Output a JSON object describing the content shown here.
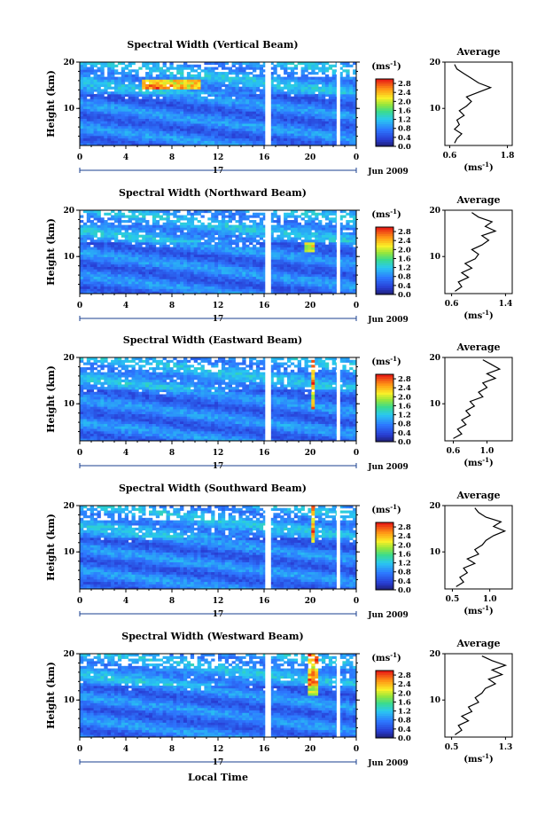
{
  "figure": {
    "xlabel": "Local Time",
    "date_label": "Jun 2009",
    "day_label": "17",
    "colorbar_unit": "(ms",
    "colorbar_unit_exp": "-1",
    "colorbar_unit_close": ")",
    "average_xlabel": "(ms",
    "height_label": "Height (km)",
    "average_title": "Average"
  },
  "chart_data": [
    {
      "type": "heatmap",
      "title": "Spectral Width (Vertical Beam)",
      "ylabel": "Height (km)",
      "x_ticks": [
        "0",
        "4",
        "8",
        "12",
        "16",
        "20",
        "0"
      ],
      "y_ticks": [
        "20",
        "10"
      ],
      "xlim": [
        0,
        24
      ],
      "ylim": [
        2,
        20
      ],
      "colorbar": {
        "ticks": [
          "2.8",
          "2.4",
          "2.0",
          "1.6",
          "1.2",
          "0.8",
          "0.4",
          "0.0"
        ],
        "range": [
          0,
          3.0
        ]
      },
      "data_gaps_hours": [
        [
          16.1,
          16.6
        ],
        [
          22.3,
          22.6
        ]
      ],
      "high_region": {
        "time": [
          5.5,
          10.5
        ],
        "height": [
          14,
          16.5
        ]
      },
      "profile": {
        "title": "Average",
        "x_ticks": [
          "0.6",
          "1.8"
        ],
        "xlim": [
          0.5,
          1.9
        ],
        "y_ticks": [
          "20",
          "10"
        ],
        "ylim": [
          2,
          20
        ],
        "values": [
          [
            0.7,
            2.5
          ],
          [
            0.75,
            3.5
          ],
          [
            0.85,
            4.5
          ],
          [
            0.7,
            5.5
          ],
          [
            0.8,
            6.5
          ],
          [
            0.75,
            7.5
          ],
          [
            0.9,
            8.5
          ],
          [
            0.8,
            9.5
          ],
          [
            0.95,
            10.5
          ],
          [
            1.05,
            11.5
          ],
          [
            0.95,
            12.5
          ],
          [
            1.2,
            13.5
          ],
          [
            1.45,
            14.5
          ],
          [
            1.2,
            15.5
          ],
          [
            1.05,
            16.5
          ],
          [
            0.9,
            17.5
          ],
          [
            0.75,
            18.5
          ],
          [
            0.7,
            19.5
          ]
        ]
      }
    },
    {
      "type": "heatmap",
      "title": "Spectral Width (Northward Beam)",
      "ylabel": "Height (km)",
      "x_ticks": [
        "0",
        "4",
        "8",
        "12",
        "16",
        "20",
        "0"
      ],
      "y_ticks": [
        "20",
        "10"
      ],
      "xlim": [
        0,
        24
      ],
      "ylim": [
        2,
        20
      ],
      "colorbar": {
        "ticks": [
          "2.8",
          "2.4",
          "2.0",
          "1.6",
          "1.2",
          "0.8",
          "0.4",
          "0.0"
        ],
        "range": [
          0,
          3.0
        ]
      },
      "data_gaps_hours": [
        [
          16.1,
          16.6
        ],
        [
          22.3,
          22.6
        ]
      ],
      "high_region": {
        "time": [
          19.5,
          20.5
        ],
        "height": [
          11,
          13
        ]
      },
      "profile": {
        "title": "Average",
        "x_ticks": [
          "0.6",
          "1.4"
        ],
        "xlim": [
          0.5,
          1.5
        ],
        "y_ticks": [
          "20",
          "10"
        ],
        "ylim": [
          2,
          20
        ],
        "values": [
          [
            0.65,
            2.5
          ],
          [
            0.75,
            3.5
          ],
          [
            0.7,
            4.5
          ],
          [
            0.85,
            5.5
          ],
          [
            0.75,
            6.5
          ],
          [
            0.9,
            7.5
          ],
          [
            0.8,
            8.5
          ],
          [
            0.95,
            9.5
          ],
          [
            1.0,
            10.5
          ],
          [
            0.9,
            11.5
          ],
          [
            1.05,
            12.5
          ],
          [
            1.15,
            13.5
          ],
          [
            1.05,
            14.5
          ],
          [
            1.25,
            15.5
          ],
          [
            1.1,
            16.5
          ],
          [
            1.2,
            17.5
          ],
          [
            1.0,
            18.5
          ],
          [
            0.9,
            19.5
          ]
        ]
      }
    },
    {
      "type": "heatmap",
      "title": "Spectral Width (Eastward Beam)",
      "ylabel": "Height (km)",
      "x_ticks": [
        "0",
        "4",
        "8",
        "12",
        "16",
        "20",
        "0"
      ],
      "y_ticks": [
        "20",
        "10"
      ],
      "xlim": [
        0,
        24
      ],
      "ylim": [
        2,
        20
      ],
      "colorbar": {
        "ticks": [
          "2.8",
          "2.4",
          "2.0",
          "1.6",
          "1.2",
          "0.8",
          "0.4",
          "0.0"
        ],
        "range": [
          0,
          3.0
        ]
      },
      "data_gaps_hours": [
        [
          16.1,
          16.6
        ],
        [
          22.3,
          22.6
        ]
      ],
      "high_region": {
        "time": [
          20.0,
          20.4
        ],
        "height": [
          9,
          20
        ]
      },
      "profile": {
        "title": "Average",
        "x_ticks": [
          "0.6",
          "1.0"
        ],
        "xlim": [
          0.5,
          1.3
        ],
        "y_ticks": [
          "20",
          "10"
        ],
        "ylim": [
          2,
          20
        ],
        "values": [
          [
            0.6,
            2.5
          ],
          [
            0.7,
            3.5
          ],
          [
            0.65,
            4.5
          ],
          [
            0.75,
            5.5
          ],
          [
            0.7,
            6.5
          ],
          [
            0.8,
            7.5
          ],
          [
            0.75,
            8.5
          ],
          [
            0.85,
            9.5
          ],
          [
            0.8,
            10.5
          ],
          [
            0.95,
            11.5
          ],
          [
            0.9,
            12.5
          ],
          [
            1.0,
            13.5
          ],
          [
            0.95,
            14.5
          ],
          [
            1.1,
            15.5
          ],
          [
            1.0,
            16.5
          ],
          [
            1.15,
            17.5
          ],
          [
            1.05,
            18.5
          ],
          [
            0.95,
            19.5
          ]
        ]
      }
    },
    {
      "type": "heatmap",
      "title": "Spectral Width (Southward Beam)",
      "ylabel": "Height (km)",
      "x_ticks": [
        "0",
        "4",
        "8",
        "12",
        "16",
        "20",
        "0"
      ],
      "y_ticks": [
        "20",
        "10"
      ],
      "xlim": [
        0,
        24
      ],
      "ylim": [
        2,
        20
      ],
      "colorbar": {
        "ticks": [
          "2.8",
          "2.4",
          "2.0",
          "1.6",
          "1.2",
          "0.8",
          "0.4",
          "0.0"
        ],
        "range": [
          0,
          3.0
        ]
      },
      "data_gaps_hours": [
        [
          16.1,
          16.6
        ],
        [
          22.3,
          22.6
        ]
      ],
      "high_region": {
        "time": [
          20.0,
          20.4
        ],
        "height": [
          12,
          20
        ]
      },
      "profile": {
        "title": "Average",
        "x_ticks": [
          "0.5",
          "1.0"
        ],
        "xlim": [
          0.4,
          1.3
        ],
        "y_ticks": [
          "20",
          "10"
        ],
        "ylim": [
          2,
          20
        ],
        "values": [
          [
            0.55,
            2.5
          ],
          [
            0.65,
            3.5
          ],
          [
            0.6,
            4.5
          ],
          [
            0.7,
            5.5
          ],
          [
            0.65,
            6.5
          ],
          [
            0.8,
            7.5
          ],
          [
            0.7,
            8.5
          ],
          [
            0.85,
            9.5
          ],
          [
            0.8,
            10.5
          ],
          [
            0.9,
            11.5
          ],
          [
            0.95,
            12.5
          ],
          [
            1.05,
            13.5
          ],
          [
            1.2,
            14.5
          ],
          [
            1.05,
            15.5
          ],
          [
            1.15,
            16.5
          ],
          [
            0.95,
            17.5
          ],
          [
            0.85,
            18.5
          ],
          [
            0.8,
            19.5
          ]
        ]
      }
    },
    {
      "type": "heatmap",
      "title": "Spectral Width (Westward Beam)",
      "ylabel": "Height (km)",
      "x_ticks": [
        "0",
        "4",
        "8",
        "12",
        "16",
        "20",
        "0"
      ],
      "y_ticks": [
        "20",
        "10"
      ],
      "xlim": [
        0,
        24
      ],
      "ylim": [
        2,
        20
      ],
      "colorbar": {
        "ticks": [
          "2.8",
          "2.4",
          "2.0",
          "1.6",
          "1.2",
          "0.8",
          "0.4",
          "0.0"
        ],
        "range": [
          0,
          3.0
        ]
      },
      "data_gaps_hours": [
        [
          16.1,
          16.6
        ],
        [
          22.3,
          22.6
        ]
      ],
      "high_region": {
        "time": [
          19.8,
          20.6
        ],
        "height": [
          11,
          20
        ]
      },
      "profile": {
        "title": "Average",
        "x_ticks": [
          "0.5",
          "1.3"
        ],
        "xlim": [
          0.4,
          1.4
        ],
        "y_ticks": [
          "20",
          "10"
        ],
        "ylim": [
          2,
          20
        ],
        "values": [
          [
            0.55,
            2.5
          ],
          [
            0.65,
            3.5
          ],
          [
            0.6,
            4.5
          ],
          [
            0.75,
            5.5
          ],
          [
            0.65,
            6.5
          ],
          [
            0.8,
            7.5
          ],
          [
            0.75,
            8.5
          ],
          [
            0.9,
            9.5
          ],
          [
            0.85,
            10.5
          ],
          [
            0.95,
            11.5
          ],
          [
            1.0,
            12.5
          ],
          [
            1.15,
            13.5
          ],
          [
            1.05,
            14.5
          ],
          [
            1.25,
            15.5
          ],
          [
            1.1,
            16.5
          ],
          [
            1.3,
            17.5
          ],
          [
            1.1,
            18.5
          ],
          [
            0.95,
            19.5
          ]
        ]
      }
    }
  ]
}
